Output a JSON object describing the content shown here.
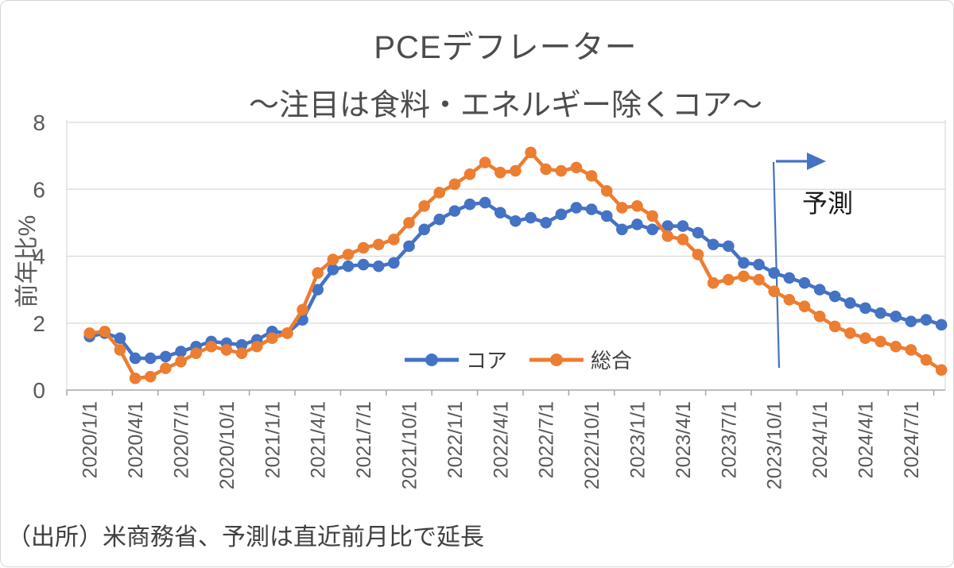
{
  "chart": {
    "title": "PCEデフレーター",
    "subtitle": "〜注目は食料・エネルギー除くコア〜",
    "annotation": "予測",
    "source_note": "（出所）米商務省、予測は直近前月比で延長"
  },
  "chart_data": {
    "type": "line",
    "title": "PCEデフレーター",
    "subtitle": "〜注目は食料・エネルギー除くコア〜",
    "xlabel": "",
    "ylabel": "前年比%",
    "ylim": [
      0,
      8
    ],
    "yticks": [
      0,
      2,
      4,
      6,
      8
    ],
    "grid": "horizontal",
    "legend_position": "inside-bottom-center",
    "x_tick_labels": [
      "2020/1/1",
      "2020/4/1",
      "2020/7/1",
      "2020/10/1",
      "2021/1/1",
      "2021/4/1",
      "2021/7/1",
      "2021/10/1",
      "2022/1/1",
      "2022/4/1",
      "2022/7/1",
      "2022/10/1",
      "2023/1/1",
      "2023/4/1",
      "2023/7/1",
      "2023/10/1",
      "2024/1/1",
      "2024/4/1",
      "2024/7/1"
    ],
    "x": [
      "2020/1",
      "2020/2",
      "2020/3",
      "2020/4",
      "2020/5",
      "2020/6",
      "2020/7",
      "2020/8",
      "2020/9",
      "2020/10",
      "2020/11",
      "2020/12",
      "2021/1",
      "2021/2",
      "2021/3",
      "2021/4",
      "2021/5",
      "2021/6",
      "2021/7",
      "2021/8",
      "2021/9",
      "2021/10",
      "2021/11",
      "2021/12",
      "2022/1",
      "2022/2",
      "2022/3",
      "2022/4",
      "2022/5",
      "2022/6",
      "2022/7",
      "2022/8",
      "2022/9",
      "2022/10",
      "2022/11",
      "2022/12",
      "2023/1",
      "2023/2",
      "2023/3",
      "2023/4",
      "2023/5",
      "2023/6",
      "2023/7",
      "2023/8",
      "2023/9",
      "2023/10",
      "2023/11",
      "2023/12",
      "2024/1",
      "2024/2",
      "2024/3",
      "2024/4",
      "2024/5",
      "2024/6",
      "2024/7",
      "2024/8",
      "2024/9"
    ],
    "series": [
      {
        "name": "コア",
        "color": "#4472C4",
        "values": [
          1.6,
          1.7,
          1.55,
          0.95,
          0.95,
          1.0,
          1.15,
          1.3,
          1.45,
          1.4,
          1.35,
          1.5,
          1.75,
          1.7,
          2.1,
          3.0,
          3.6,
          3.7,
          3.75,
          3.7,
          3.8,
          4.3,
          4.8,
          5.1,
          5.35,
          5.55,
          5.6,
          5.3,
          5.05,
          5.15,
          5.0,
          5.25,
          5.45,
          5.4,
          5.2,
          4.8,
          4.95,
          4.8,
          4.9,
          4.9,
          4.7,
          4.35,
          4.3,
          3.8,
          3.75,
          3.5,
          3.35,
          3.2,
          3.0,
          2.8,
          2.6,
          2.45,
          2.3,
          2.2,
          2.05,
          2.1,
          1.95
        ]
      },
      {
        "name": "総合",
        "color": "#ED7D31",
        "values": [
          1.7,
          1.75,
          1.2,
          0.35,
          0.4,
          0.65,
          0.85,
          1.1,
          1.3,
          1.2,
          1.1,
          1.3,
          1.55,
          1.7,
          2.4,
          3.5,
          3.9,
          4.05,
          4.25,
          4.35,
          4.5,
          5.0,
          5.5,
          5.9,
          6.15,
          6.45,
          6.8,
          6.5,
          6.55,
          7.1,
          6.6,
          6.55,
          6.65,
          6.4,
          5.95,
          5.45,
          5.5,
          5.2,
          4.6,
          4.5,
          4.05,
          3.2,
          3.3,
          3.4,
          3.3,
          2.95,
          2.7,
          2.5,
          2.2,
          1.9,
          1.7,
          1.55,
          1.45,
          1.3,
          1.2,
          0.9,
          0.6
        ]
      }
    ],
    "forecast_start_index": 45,
    "forecast_start_month": "2023/10",
    "colors": {
      "divider": "#4472C4",
      "gridline": "#d9d9d9",
      "axis": "#a6a6a6",
      "tick_text": "#595959"
    }
  }
}
